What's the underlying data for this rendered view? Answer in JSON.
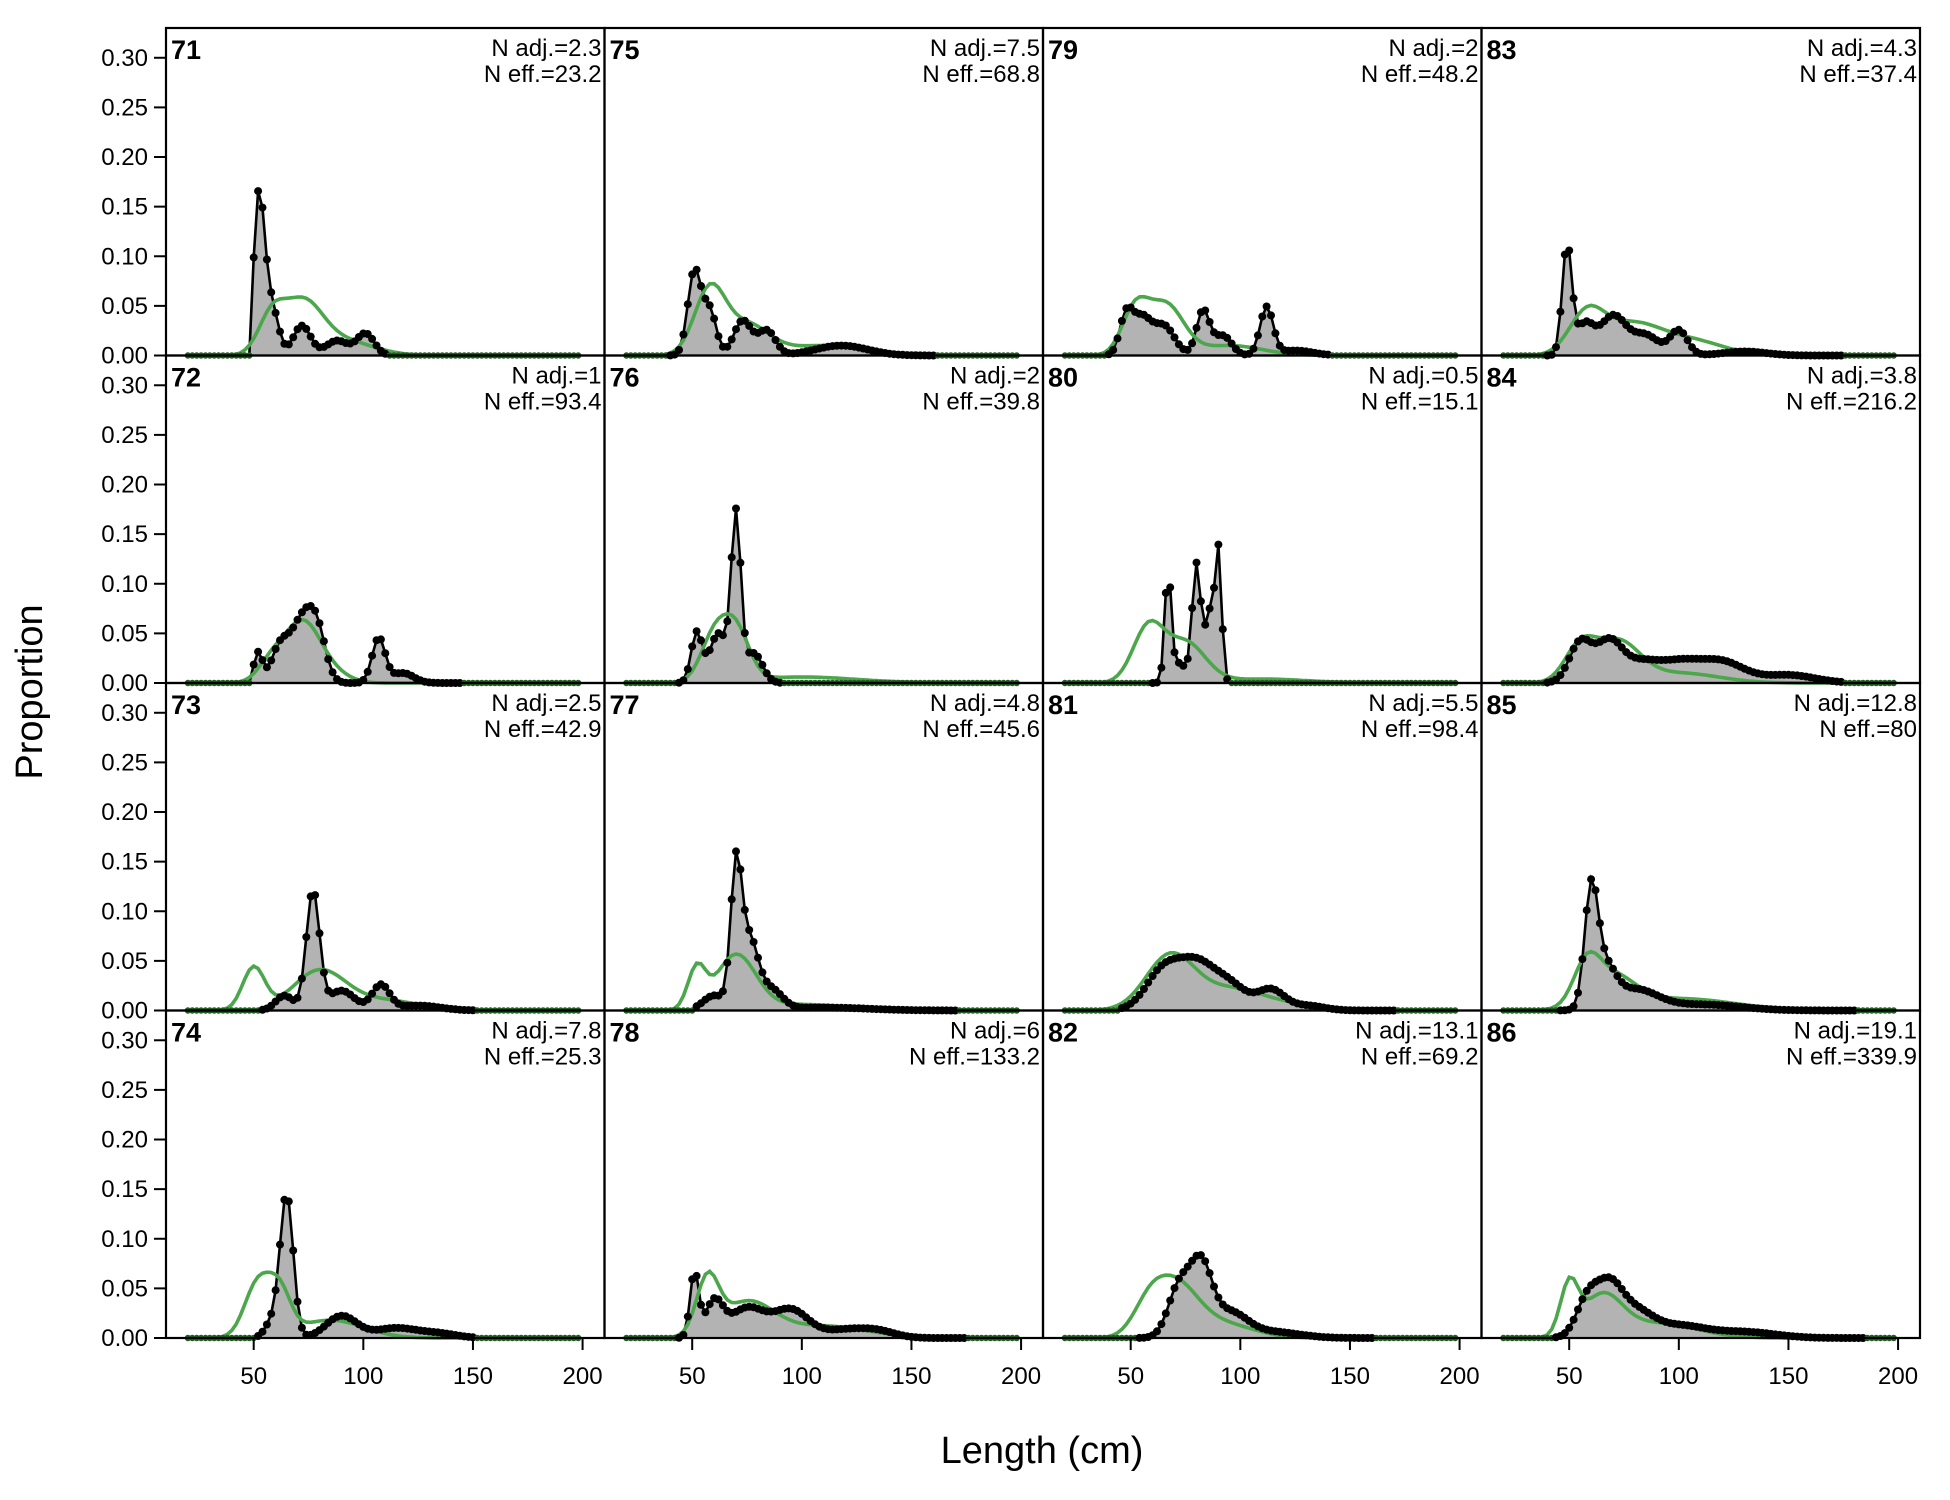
{
  "chart_data": {
    "type": "area",
    "xlabel": "Length (cm)",
    "ylabel": "Proportion",
    "xlim": [
      10,
      210
    ],
    "ylim": [
      0,
      0.33
    ],
    "x_ticks": [
      50,
      100,
      150,
      200
    ],
    "y_ticks": [
      0.0,
      0.05,
      0.1,
      0.15,
      0.2,
      0.25,
      0.3
    ],
    "x_tick_labels": [
      "50",
      "100",
      "150",
      "200"
    ],
    "y_tick_labels": [
      "0.00",
      "0.05",
      "0.10",
      "0.15",
      "0.20",
      "0.25",
      "0.30"
    ],
    "x_start": 20,
    "x_end": 198,
    "x_step": 2,
    "grid": false,
    "layout": "4 columns x 4 rows, panels fill down columns",
    "colors": {
      "observed_fill": "#b3b3b3",
      "observed_line": "#000000",
      "expected_line": "#4ca64c",
      "zero_line": "#bdbdbd"
    },
    "panels": [
      {
        "label": "71",
        "n_adj": "N adj.=2.3",
        "n_eff": "N eff.=23.2",
        "observed_peaks": [
          [
            52,
            0.123,
            2.2
          ],
          [
            55,
            0.07,
            3
          ],
          [
            60,
            0.025,
            2.5
          ],
          [
            72,
            0.03,
            4
          ],
          [
            88,
            0.015,
            5
          ],
          [
            101,
            0.022,
            4
          ]
        ],
        "obs_range": [
          50,
          110
        ],
        "expected_peaks": [
          [
            58,
            0.035,
            6
          ],
          [
            72,
            0.05,
            9
          ],
          [
            90,
            0.015,
            14
          ]
        ],
        "exp_range": [
          40,
          150
        ]
      },
      {
        "label": "72",
        "n_adj": "N adj.=1",
        "n_eff": "N eff.=93.4",
        "observed_peaks": [
          [
            52,
            0.03,
            2
          ],
          [
            62,
            0.035,
            4
          ],
          [
            72,
            0.06,
            5
          ],
          [
            79,
            0.045,
            4
          ],
          [
            107,
            0.045,
            3
          ],
          [
            118,
            0.01,
            5
          ]
        ],
        "obs_range": [
          50,
          145
        ],
        "expected_peaks": [
          [
            58,
            0.02,
            6
          ],
          [
            72,
            0.06,
            8
          ],
          [
            85,
            0.01,
            8
          ]
        ],
        "exp_range": [
          30,
          120
        ]
      },
      {
        "label": "73",
        "n_adj": "N adj.=2.5",
        "n_eff": "N eff.=42.9",
        "observed_peaks": [
          [
            64,
            0.015,
            4
          ],
          [
            77,
            0.12,
            3
          ],
          [
            90,
            0.02,
            6
          ],
          [
            108,
            0.025,
            4
          ],
          [
            125,
            0.005,
            10
          ]
        ],
        "obs_range": [
          54,
          150
        ],
        "expected_peaks": [
          [
            50,
            0.043,
            5
          ],
          [
            80,
            0.04,
            12
          ],
          [
            110,
            0.01,
            15
          ]
        ],
        "exp_range": [
          30,
          170
        ]
      },
      {
        "label": "74",
        "n_adj": "N adj.=7.8",
        "n_eff": "N eff.=25.3",
        "observed_peaks": [
          [
            58,
            0.015,
            3
          ],
          [
            65,
            0.145,
            3
          ],
          [
            90,
            0.022,
            7
          ],
          [
            115,
            0.01,
            10
          ],
          [
            135,
            0.004,
            8
          ]
        ],
        "obs_range": [
          52,
          150
        ],
        "expected_peaks": [
          [
            52,
            0.055,
            6
          ],
          [
            62,
            0.04,
            5
          ],
          [
            85,
            0.018,
            15
          ]
        ],
        "exp_range": [
          30,
          160
        ]
      },
      {
        "label": "75",
        "n_adj": "N adj.=7.5",
        "n_eff": "N eff.=68.8",
        "observed_peaks": [
          [
            51,
            0.085,
            3
          ],
          [
            58,
            0.045,
            3
          ],
          [
            73,
            0.035,
            4
          ],
          [
            84,
            0.025,
            4
          ],
          [
            118,
            0.01,
            12
          ]
        ],
        "obs_range": [
          40,
          160
        ],
        "expected_peaks": [
          [
            58,
            0.065,
            7
          ],
          [
            75,
            0.03,
            10
          ],
          [
            110,
            0.01,
            18
          ]
        ],
        "exp_range": [
          35,
          160
        ]
      },
      {
        "label": "76",
        "n_adj": "N adj.=2",
        "n_eff": "N eff.=39.8",
        "observed_peaks": [
          [
            52,
            0.05,
            2.5
          ],
          [
            62,
            0.05,
            4
          ],
          [
            70,
            0.165,
            2.2
          ],
          [
            78,
            0.03,
            4
          ]
        ],
        "obs_range": [
          44,
          90
        ],
        "expected_peaks": [
          [
            60,
            0.045,
            6
          ],
          [
            70,
            0.05,
            6
          ],
          [
            100,
            0.006,
            25
          ]
        ],
        "exp_range": [
          35,
          170
        ]
      },
      {
        "label": "77",
        "n_adj": "N adj.=4.8",
        "n_eff": "N eff.=45.6",
        "observed_peaks": [
          [
            60,
            0.015,
            5
          ],
          [
            70,
            0.135,
            2.5
          ],
          [
            76,
            0.07,
            4
          ],
          [
            86,
            0.02,
            5
          ],
          [
            110,
            0.003,
            20
          ]
        ],
        "obs_range": [
          52,
          170
        ],
        "expected_peaks": [
          [
            52,
            0.04,
            4
          ],
          [
            70,
            0.055,
            9
          ],
          [
            100,
            0.006,
            20
          ]
        ],
        "exp_range": [
          30,
          170
        ]
      },
      {
        "label": "78",
        "n_adj": "N adj.=6",
        "n_eff": "N eff.=133.2",
        "observed_peaks": [
          [
            51,
            0.065,
            2
          ],
          [
            60,
            0.035,
            4
          ],
          [
            75,
            0.03,
            8
          ],
          [
            95,
            0.028,
            8
          ],
          [
            120,
            0.008,
            10
          ],
          [
            135,
            0.006,
            8
          ]
        ],
        "obs_range": [
          44,
          175
        ],
        "expected_peaks": [
          [
            57,
            0.055,
            5
          ],
          [
            75,
            0.035,
            12
          ],
          [
            110,
            0.012,
            20
          ]
        ],
        "exp_range": [
          35,
          180
        ]
      },
      {
        "label": "79",
        "n_adj": "N adj.=2",
        "n_eff": "N eff.=48.2",
        "observed_peaks": [
          [
            48,
            0.04,
            3
          ],
          [
            55,
            0.035,
            4
          ],
          [
            65,
            0.03,
            5
          ],
          [
            83,
            0.045,
            3
          ],
          [
            92,
            0.02,
            4
          ],
          [
            112,
            0.048,
            3
          ],
          [
            125,
            0.005,
            8
          ]
        ],
        "obs_range": [
          40,
          140
        ],
        "expected_peaks": [
          [
            52,
            0.045,
            6
          ],
          [
            66,
            0.05,
            8
          ],
          [
            95,
            0.01,
            15
          ]
        ],
        "exp_range": [
          30,
          140
        ]
      },
      {
        "label": "80",
        "n_adj": "N adj.=0.5",
        "n_eff": "N eff.=15.1",
        "observed_peaks": [
          [
            67,
            0.11,
            1.5
          ],
          [
            80,
            0.12,
            2
          ],
          [
            86,
            0.07,
            2
          ],
          [
            90,
            0.13,
            1.5
          ],
          [
            72,
            0.02,
            3
          ]
        ],
        "obs_range": [
          60,
          95
        ],
        "expected_peaks": [
          [
            58,
            0.055,
            7
          ],
          [
            75,
            0.04,
            9
          ],
          [
            110,
            0.004,
            20
          ]
        ],
        "exp_range": [
          35,
          150
        ]
      },
      {
        "label": "81",
        "n_adj": "N adj.=5.5",
        "n_eff": "N eff.=98.4",
        "observed_peaks": [
          [
            65,
            0.04,
            8
          ],
          [
            80,
            0.042,
            8
          ],
          [
            95,
            0.025,
            8
          ],
          [
            114,
            0.02,
            6
          ],
          [
            130,
            0.005,
            8
          ]
        ],
        "obs_range": [
          46,
          170
        ],
        "expected_peaks": [
          [
            68,
            0.055,
            11
          ],
          [
            95,
            0.02,
            14
          ],
          [
            120,
            0.006,
            15
          ]
        ],
        "exp_range": [
          35,
          170
        ]
      },
      {
        "label": "82",
        "n_adj": "N adj.=13.1",
        "n_eff": "N eff.=69.2",
        "observed_peaks": [
          [
            72,
            0.05,
            5
          ],
          [
            82,
            0.07,
            5
          ],
          [
            95,
            0.025,
            8
          ],
          [
            115,
            0.006,
            12
          ]
        ],
        "obs_range": [
          54,
          160
        ],
        "expected_peaks": [
          [
            58,
            0.025,
            7
          ],
          [
            70,
            0.05,
            10
          ],
          [
            90,
            0.015,
            15
          ]
        ],
        "exp_range": [
          35,
          160
        ]
      },
      {
        "label": "83",
        "n_adj": "N adj.=4.3",
        "n_eff": "N eff.=37.4",
        "observed_peaks": [
          [
            49,
            0.11,
            2.2
          ],
          [
            57,
            0.03,
            4
          ],
          [
            70,
            0.04,
            6
          ],
          [
            85,
            0.02,
            6
          ],
          [
            100,
            0.025,
            4
          ],
          [
            130,
            0.004,
            10
          ]
        ],
        "obs_range": [
          40,
          175
        ],
        "expected_peaks": [
          [
            58,
            0.04,
            8
          ],
          [
            78,
            0.03,
            13
          ],
          [
            105,
            0.015,
            15
          ]
        ],
        "exp_range": [
          35,
          170
        ]
      },
      {
        "label": "84",
        "n_adj": "N adj.=3.8",
        "n_eff": "N eff.=216.2",
        "observed_peaks": [
          [
            55,
            0.04,
            5
          ],
          [
            68,
            0.04,
            6
          ],
          [
            82,
            0.018,
            8
          ],
          [
            100,
            0.02,
            10
          ],
          [
            120,
            0.02,
            10
          ],
          [
            150,
            0.008,
            12
          ]
        ],
        "obs_range": [
          40,
          175
        ],
        "expected_peaks": [
          [
            55,
            0.035,
            7
          ],
          [
            72,
            0.04,
            10
          ],
          [
            100,
            0.01,
            18
          ]
        ],
        "exp_range": [
          30,
          175
        ]
      },
      {
        "label": "85",
        "n_adj": "N adj.=12.8",
        "n_eff": "N eff.=80",
        "observed_peaks": [
          [
            60,
            0.11,
            3
          ],
          [
            66,
            0.04,
            5
          ],
          [
            80,
            0.02,
            10
          ],
          [
            110,
            0.006,
            18
          ]
        ],
        "obs_range": [
          46,
          180
        ],
        "expected_peaks": [
          [
            58,
            0.04,
            6
          ],
          [
            70,
            0.03,
            10
          ],
          [
            100,
            0.012,
            25
          ]
        ],
        "exp_range": [
          35,
          190
        ]
      },
      {
        "label": "86",
        "n_adj": "N adj.=19.1",
        "n_eff": "N eff.=339.9",
        "observed_peaks": [
          [
            58,
            0.035,
            5
          ],
          [
            68,
            0.048,
            6
          ],
          [
            80,
            0.025,
            8
          ],
          [
            100,
            0.012,
            12
          ],
          [
            130,
            0.006,
            14
          ]
        ],
        "obs_range": [
          44,
          185
        ],
        "expected_peaks": [
          [
            50,
            0.05,
            4
          ],
          [
            65,
            0.04,
            9
          ],
          [
            90,
            0.015,
            18
          ]
        ],
        "exp_range": [
          35,
          190
        ]
      }
    ]
  }
}
